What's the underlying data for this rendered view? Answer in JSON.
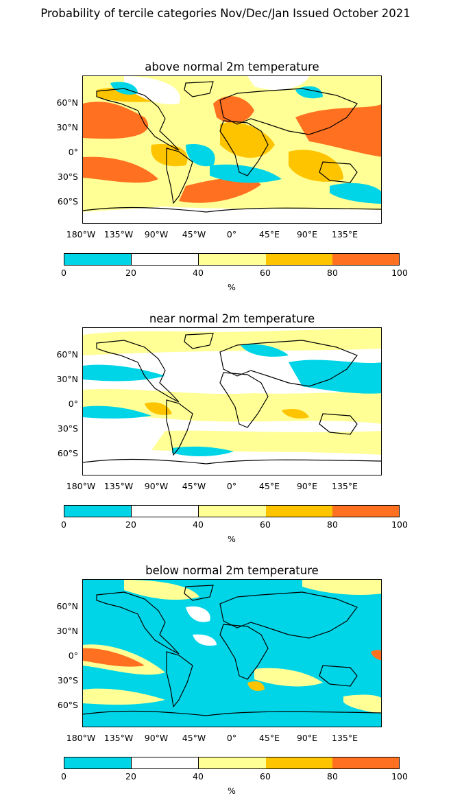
{
  "title": "Probability of tercile categories Nov/Dec/Jan Issued October 2021",
  "colors": {
    "c0_20": "#00D5E8",
    "c20_40": "#FFFFFF",
    "c40_60": "#FFFF96",
    "c60_80": "#FFC400",
    "c80_100": "#FF7020",
    "coast": "#000000"
  },
  "lat_labels": [
    "60°N",
    "30°N",
    "0°",
    "30°S",
    "60°S"
  ],
  "lon_labels": [
    "180°W",
    "135°W",
    "90°W",
    "45°W",
    "0°",
    "45°E",
    "90°E",
    "135°E"
  ],
  "colorbar": {
    "ticks": [
      "0",
      "20",
      "40",
      "60",
      "80",
      "100"
    ],
    "unit": "%",
    "bins": [
      "0-20",
      "20-40",
      "40-60",
      "60-80",
      "80-100"
    ]
  },
  "panels": [
    {
      "title": "above normal 2m temperature",
      "dominant_category": "mixed, large 60-100 areas over tropics"
    },
    {
      "title": "near normal 2m temperature",
      "dominant_category": "mostly 20-60"
    },
    {
      "title": "below normal 2m temperature",
      "dominant_category": "mostly 0-20"
    }
  ]
}
